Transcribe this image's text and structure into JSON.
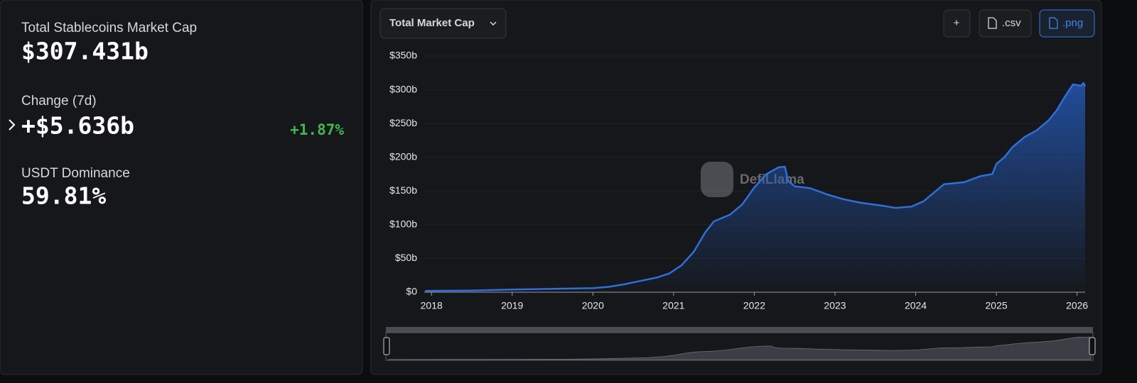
{
  "stats": [
    {
      "label": "Total Stablecoins Market Cap",
      "value": "$307.431b"
    },
    {
      "label": "Change (7d)",
      "value": "+$5.636b",
      "change": "+1.87%"
    },
    {
      "label": "USDT Dominance",
      "value": "59.81%"
    }
  ],
  "toolbar": {
    "dropdown": "Total Market Cap",
    "buttons": [
      "+",
      ".csv",
      ".png"
    ]
  },
  "watermark": "DefiLlama",
  "chart_data": {
    "type": "area",
    "color": "#2f6fdb",
    "x": [
      2017.92,
      2018.5,
      2019.0,
      2019.5,
      2020.0,
      2020.2,
      2020.4,
      2020.6,
      2020.8,
      2020.95,
      2021.1,
      2021.25,
      2021.4,
      2021.5,
      2021.7,
      2021.85,
      2022.0,
      2022.15,
      2022.3,
      2022.38,
      2022.42,
      2022.5,
      2022.7,
      2022.9,
      2023.1,
      2023.3,
      2023.6,
      2023.75,
      2023.95,
      2024.1,
      2024.25,
      2024.35,
      2024.6,
      2024.8,
      2024.95,
      2025.0,
      2025.1,
      2025.2,
      2025.35,
      2025.5,
      2025.65,
      2025.75,
      2025.85,
      2025.95,
      2026.05,
      2026.08,
      2026.1
    ],
    "values": [
      2,
      2.5,
      4,
      5,
      6,
      8,
      12,
      17,
      22,
      28,
      40,
      60,
      90,
      105,
      115,
      130,
      155,
      175,
      185,
      186,
      165,
      157,
      154,
      145,
      138,
      133,
      128,
      125,
      127,
      135,
      150,
      160,
      163,
      172,
      175,
      190,
      200,
      215,
      230,
      240,
      255,
      270,
      290,
      308,
      306,
      310,
      305
    ],
    "xlim": [
      2017.91,
      2026.1
    ],
    "xticks": [
      2018,
      2019,
      2020,
      2021,
      2022,
      2023,
      2024,
      2025,
      2026
    ],
    "ylim": [
      0,
      350
    ],
    "yticks": [
      {
        "value": 0,
        "label": "$0"
      },
      {
        "value": 50,
        "label": "$50b"
      },
      {
        "value": 100,
        "label": "$100b"
      },
      {
        "value": 150,
        "label": "$150b"
      },
      {
        "value": 200,
        "label": "$200b"
      },
      {
        "value": 250,
        "label": "$250b"
      },
      {
        "value": 300,
        "label": "$300b"
      },
      {
        "value": 350,
        "label": "$350b"
      }
    ],
    "grid": true
  }
}
